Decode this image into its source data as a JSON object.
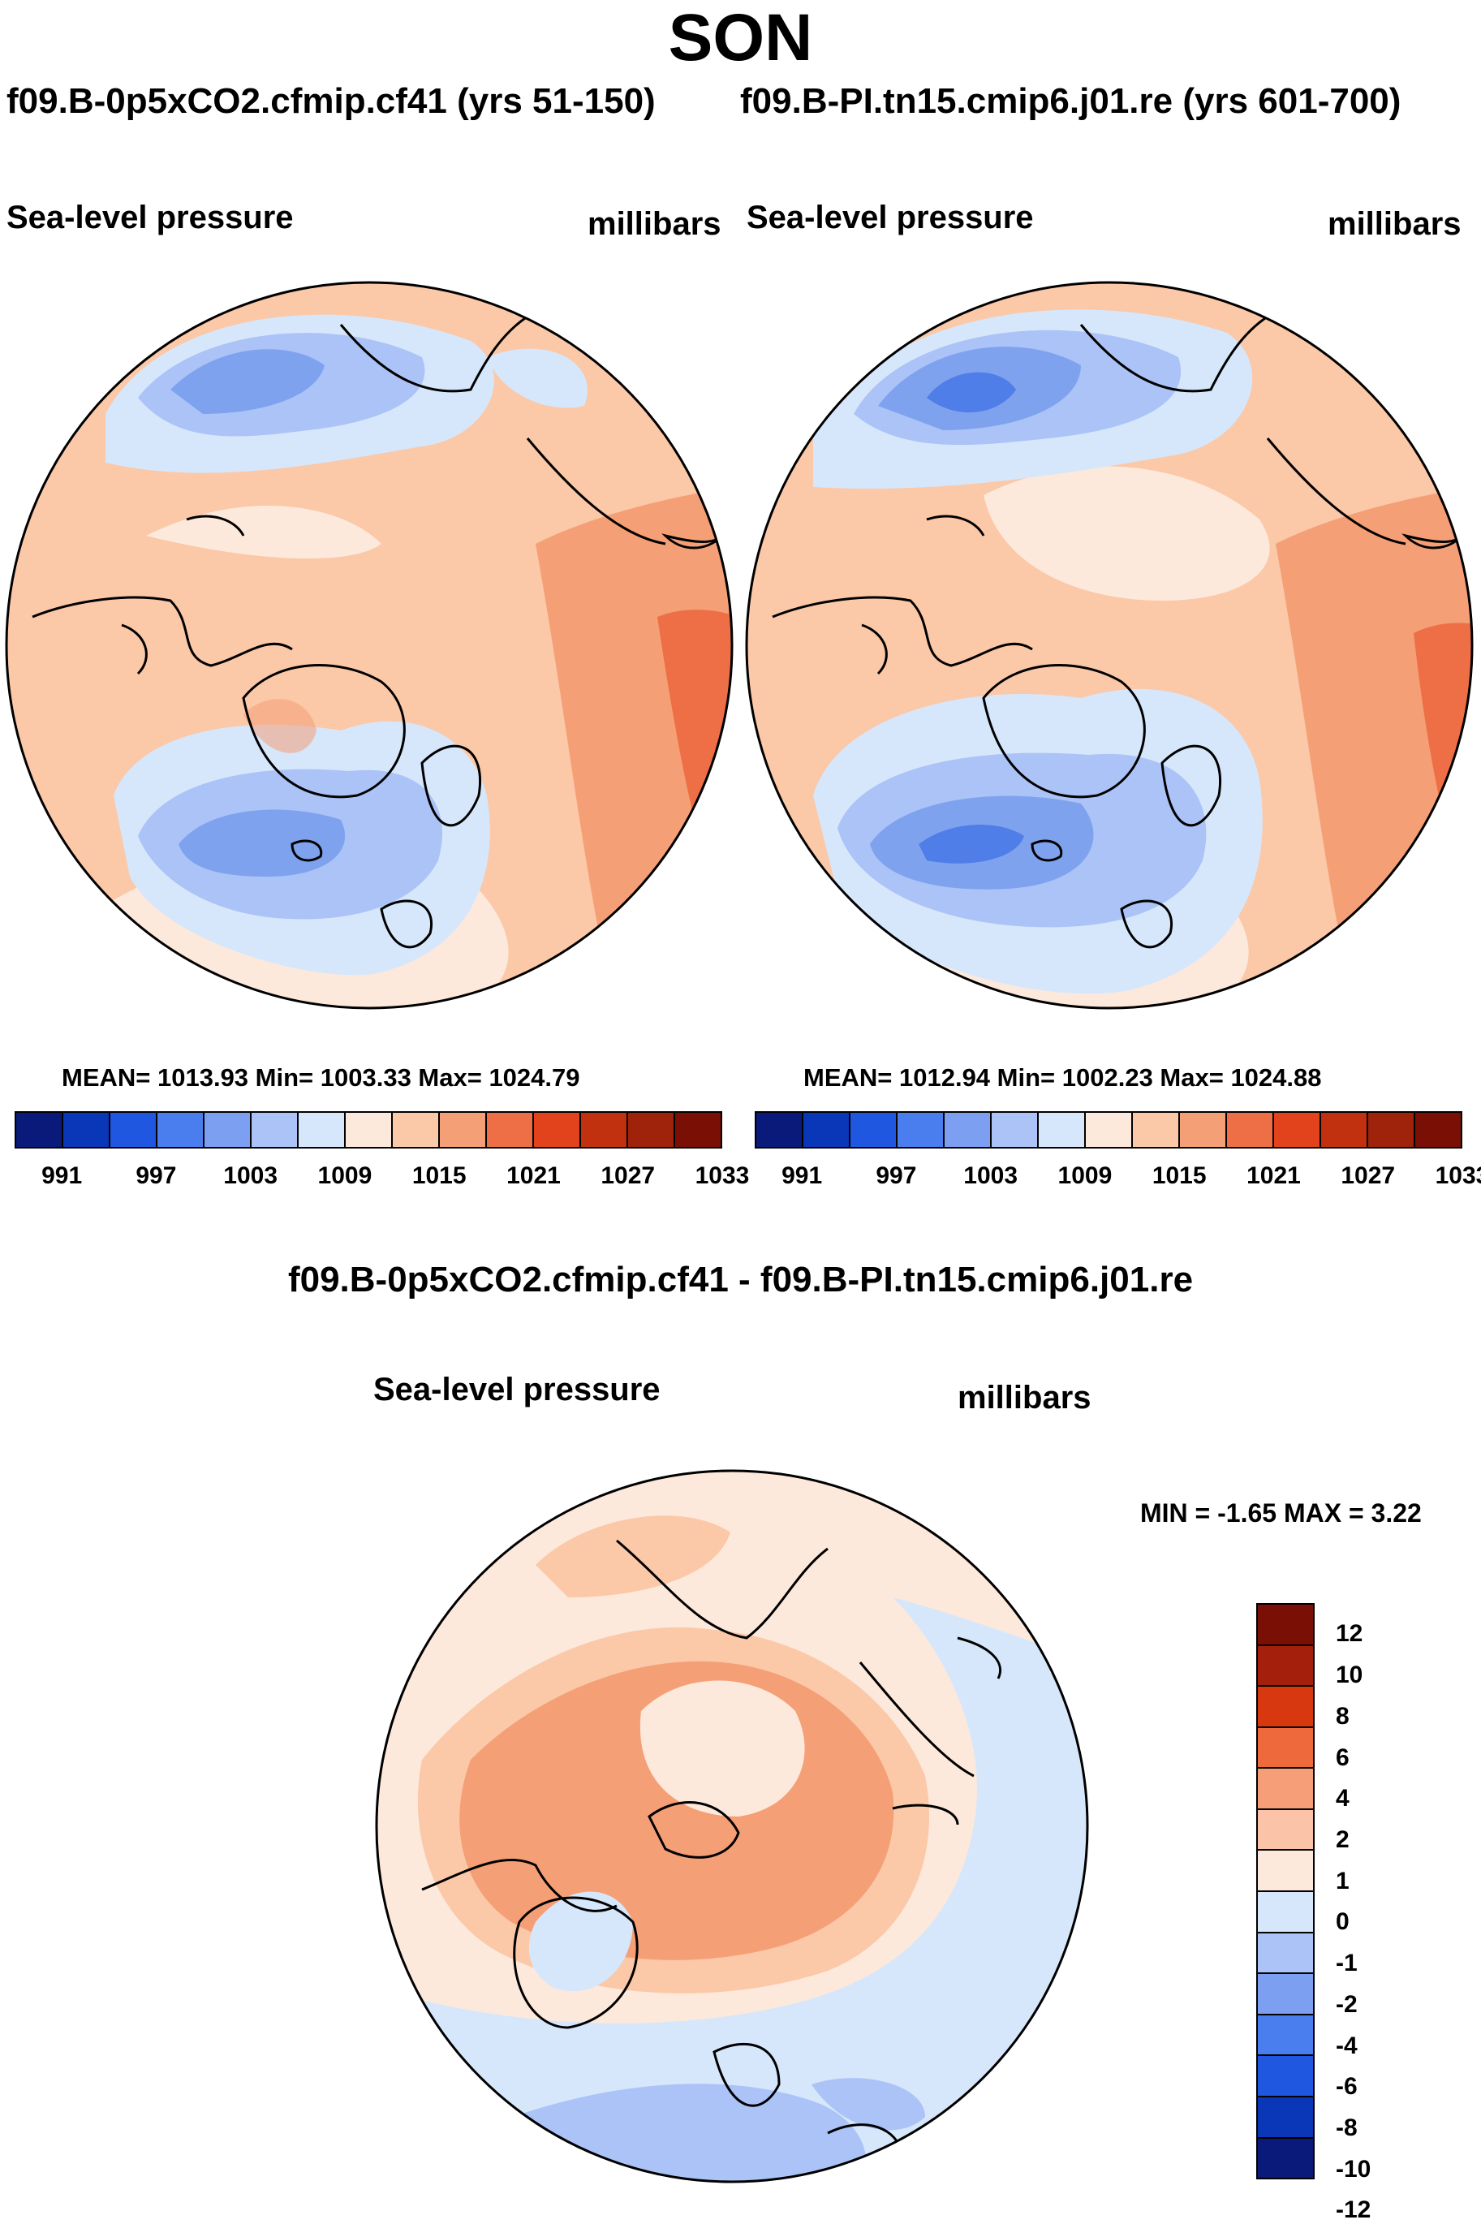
{
  "title": "SON",
  "panels": [
    {
      "run": "f09.B-0p5xCO2.cfmip.cf41 (yrs 51-150)",
      "field": "Sea-level pressure",
      "units": "millibars",
      "stats": "MEAN= 1013.93  Min= 1003.33  Max= 1024.79"
    },
    {
      "run": "f09.B-PI.tn15.cmip6.j01.re (yrs 601-700)",
      "field": "Sea-level pressure",
      "units": "millibars",
      "stats": "MEAN= 1012.94  Min= 1002.23  Max= 1024.88"
    }
  ],
  "abs_colorbar": {
    "colors": [
      "#0a1a7a",
      "#0a36b8",
      "#1f57e0",
      "#4a7ded",
      "#7d9ff2",
      "#abc3f7",
      "#d6e7fb",
      "#fde9dc",
      "#fbc8a8",
      "#f59f76",
      "#ee6f45",
      "#e3431c",
      "#c1310f",
      "#9e230a",
      "#7a0f06"
    ],
    "labels": [
      "991",
      "997",
      "1003",
      "1009",
      "1015",
      "1021",
      "1027",
      "1033"
    ]
  },
  "diff": {
    "title": "f09.B-0p5xCO2.cfmip.cf41 - f09.B-PI.tn15.cmip6.j01.re",
    "field": "Sea-level pressure",
    "units": "millibars",
    "minmax": "MIN =  -1.65 MAX =   3.22"
  },
  "diff_colorbar": {
    "colors": [
      "#7a0f06",
      "#a5200c",
      "#d8380f",
      "#ee6a3c",
      "#f59e78",
      "#fbc4a8",
      "#fde9dc",
      "#d6e7fb",
      "#abc3f7",
      "#7d9ff2",
      "#4a7ded",
      "#1f57e0",
      "#0a36b8",
      "#0a1a7a"
    ],
    "labels": [
      "12",
      "10",
      "8",
      "6",
      "4",
      "2",
      "1",
      "0",
      "-1",
      "-2",
      "-4",
      "-6",
      "-8",
      "-10",
      "-12"
    ]
  },
  "colors": {
    "blue_dark": "#4f7ee8",
    "blue_mid": "#7fa2ef",
    "blue_light": "#abc3f7",
    "blue_pale": "#d6e7fb",
    "peach_pale": "#fde9dc",
    "peach": "#fbc8a8",
    "orange": "#f59f76",
    "orange_deep": "#ee6f45"
  }
}
